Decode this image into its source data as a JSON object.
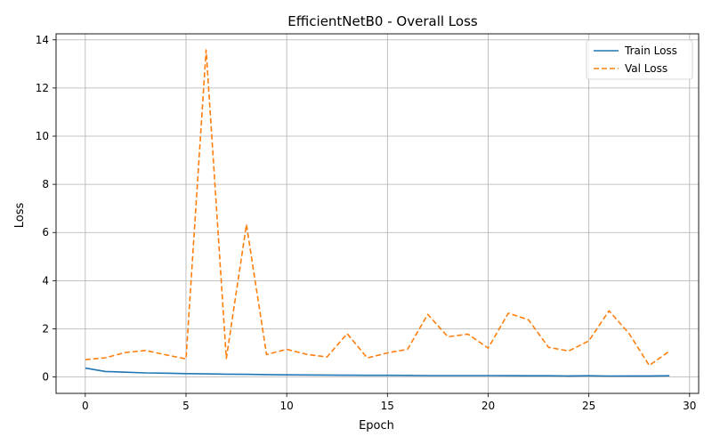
{
  "chart_data": {
    "type": "line",
    "title": "EfficientNetB0 - Overall Loss",
    "xlabel": "Epoch",
    "ylabel": "Loss",
    "xlim": [
      -1.45,
      30.45
    ],
    "ylim": [
      -0.68,
      14.25
    ],
    "xticks": [
      0,
      5,
      10,
      15,
      20,
      25,
      30
    ],
    "yticks": [
      0,
      2,
      4,
      6,
      8,
      10,
      12,
      14
    ],
    "grid": true,
    "legend_position": "top-right",
    "x": [
      0,
      1,
      2,
      3,
      4,
      5,
      6,
      7,
      8,
      9,
      10,
      11,
      12,
      13,
      14,
      15,
      16,
      17,
      18,
      19,
      20,
      21,
      22,
      23,
      24,
      25,
      26,
      27,
      28,
      29
    ],
    "series": [
      {
        "name": "Train Loss",
        "color": "#1f77b4",
        "style": "solid",
        "values": [
          0.37,
          0.23,
          0.2,
          0.17,
          0.16,
          0.14,
          0.13,
          0.12,
          0.11,
          0.1,
          0.09,
          0.085,
          0.08,
          0.075,
          0.07,
          0.07,
          0.065,
          0.06,
          0.06,
          0.06,
          0.06,
          0.055,
          0.05,
          0.05,
          0.045,
          0.05,
          0.04,
          0.045,
          0.045,
          0.05
        ]
      },
      {
        "name": "Val Loss",
        "color": "#ff7f0e",
        "style": "dashed",
        "values": [
          0.72,
          0.8,
          1.02,
          1.1,
          0.92,
          0.75,
          13.58,
          0.77,
          6.33,
          0.93,
          1.15,
          0.94,
          0.83,
          1.8,
          0.79,
          1.0,
          1.15,
          2.6,
          1.67,
          1.78,
          1.2,
          2.65,
          2.38,
          1.23,
          1.08,
          1.5,
          2.75,
          1.8,
          0.48,
          1.07
        ]
      }
    ]
  }
}
